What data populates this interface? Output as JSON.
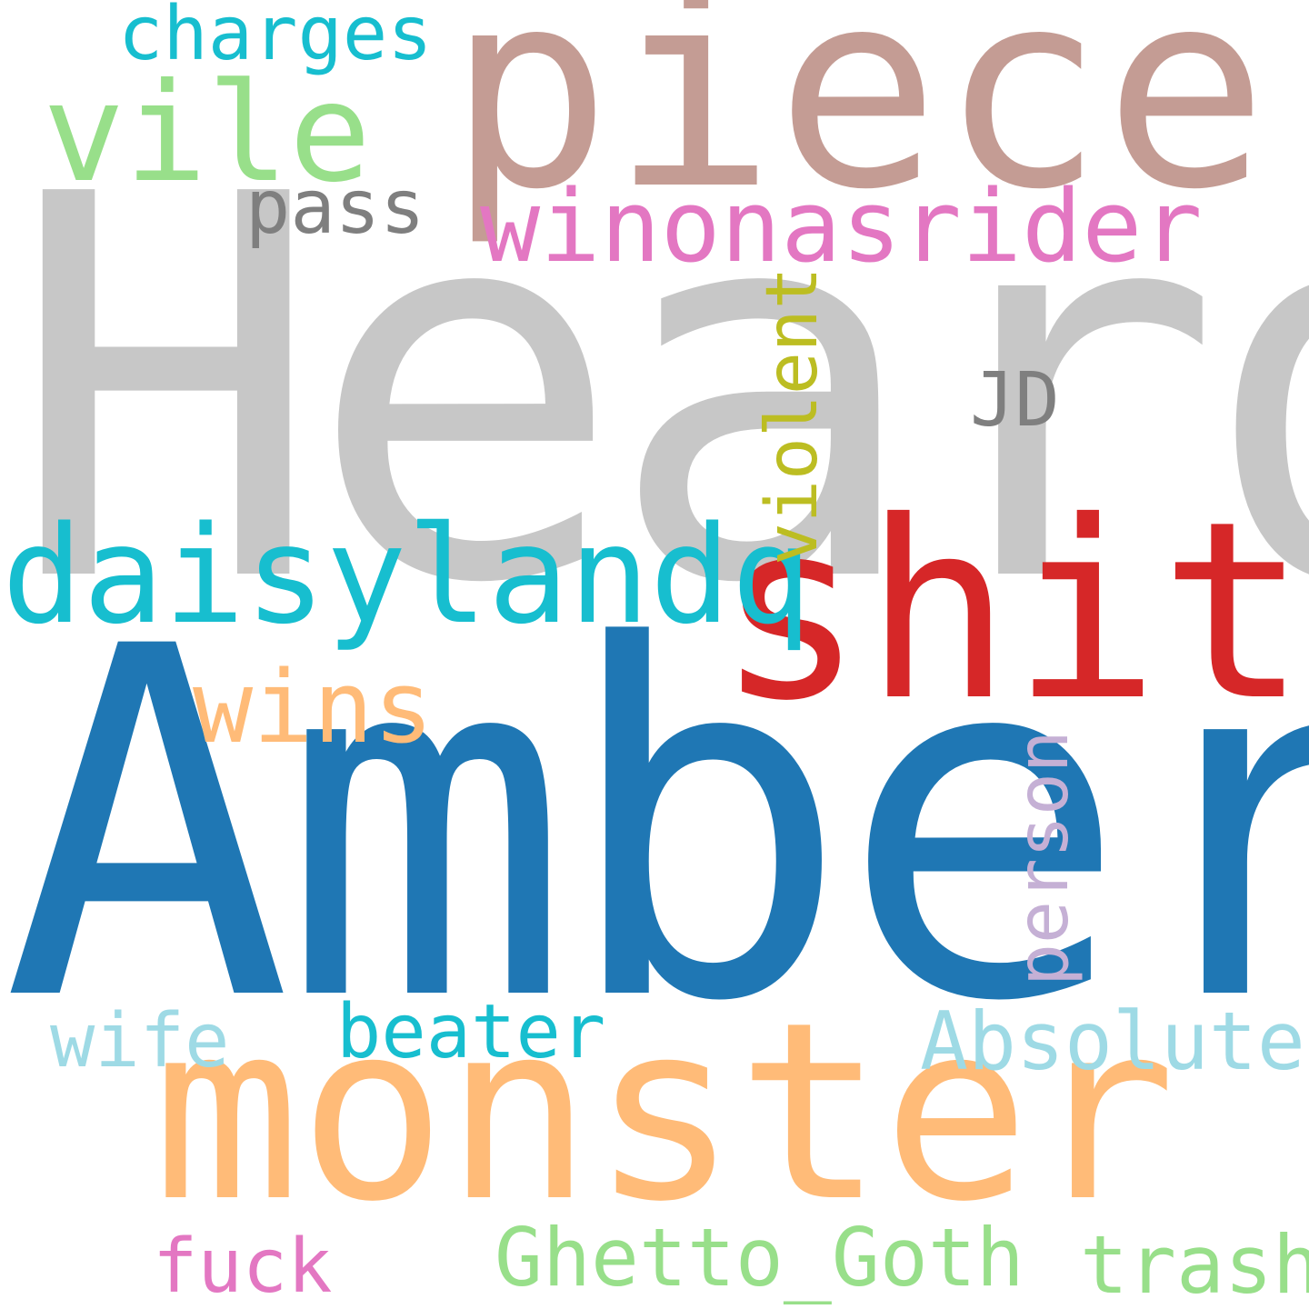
{
  "words": [
    {
      "text": "Heard",
      "color": "#c7c7c7"
    },
    {
      "text": "Amber",
      "color": "#1f77b4"
    },
    {
      "text": "monster",
      "color": "#ffbb78"
    },
    {
      "text": "piece",
      "color": "#c49c94"
    },
    {
      "text": "shit",
      "color": "#d62728"
    },
    {
      "text": "daisylandq",
      "color": "#17becf"
    },
    {
      "text": "winonasrider",
      "color": "#e377c2"
    },
    {
      "text": "vile",
      "color": "#98df8a"
    },
    {
      "text": "wins",
      "color": "#ffbb78"
    },
    {
      "text": "charges",
      "color": "#17becf"
    },
    {
      "text": "pass",
      "color": "#7f7f7f"
    },
    {
      "text": "JD",
      "color": "#7f7f7f"
    },
    {
      "text": "violent",
      "color": "#bcbd22"
    },
    {
      "text": "person",
      "color": "#c5b0d5"
    },
    {
      "text": "Absolute",
      "color": "#9edae5"
    },
    {
      "text": "beater",
      "color": "#17becf"
    },
    {
      "text": "wife",
      "color": "#9edae5"
    },
    {
      "text": "fuck",
      "color": "#e377c2"
    },
    {
      "text": "Ghetto_Goth",
      "color": "#98df8a"
    },
    {
      "text": "trash",
      "color": "#98df8a"
    }
  ]
}
